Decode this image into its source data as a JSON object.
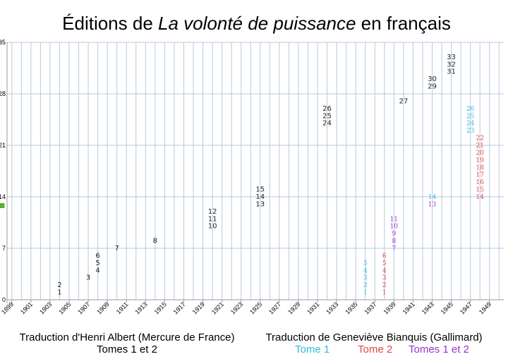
{
  "title": {
    "prefix": "Éditions de ",
    "italic": "La volonté de  puissance",
    "suffix": " en français"
  },
  "captions": {
    "albert_line1": "Traduction d'Henri Albert (Mercure de France)",
    "albert_line2": "Tomes 1 et 2",
    "bianquis_line1": "Traduction de Geneviève Bianquis (Gallimard)",
    "legend_tome1": "Tome 1",
    "legend_tome2": "Tome 2",
    "legend_tomes12": "Tomes 1 et 2"
  },
  "colors": {
    "albert": "#222222",
    "tome1": "#33bbdd",
    "tome2": "#e0474c",
    "tomes12": "#9933cc",
    "grid": "#b7c9dd",
    "axis": "#999999",
    "marker": "#55bb22"
  },
  "chart_data": {
    "type": "scatter",
    "title": "Éditions de La volonté de  puissance en français",
    "xlabel": "",
    "ylabel": "",
    "xlim": [
      1898.5,
      1950.5
    ],
    "ylim": [
      0,
      35
    ],
    "xticks": [
      "1899",
      "1901",
      "1903",
      "1905",
      "1907",
      "1909",
      "1911",
      "1913",
      "1915",
      "1917",
      "1919",
      "1921",
      "1923",
      "1925",
      "1927",
      "1929",
      "1931",
      "1933",
      "1935",
      "1937",
      "1939",
      "1941",
      "1943",
      "1945",
      "1947",
      "1949"
    ],
    "yticks": [
      "0",
      "7",
      "14",
      "21",
      "28",
      "35"
    ],
    "grid": true,
    "legend": "bottom",
    "series": [
      {
        "name": "Tomes 1 et 2",
        "group": "albert",
        "points": [
          {
            "x": 1904,
            "labels": [
              "1",
              "2"
            ]
          },
          {
            "x": 1907,
            "labels": [
              "3"
            ]
          },
          {
            "x": 1908,
            "labels": [
              "4",
              "5",
              "6"
            ]
          },
          {
            "x": 1910,
            "labels": [
              "7"
            ]
          },
          {
            "x": 1914,
            "labels": [
              "8"
            ]
          },
          {
            "x": 1920,
            "labels": [
              "10",
              "11",
              "12"
            ]
          },
          {
            "x": 1925,
            "labels": [
              "13",
              "14",
              "15"
            ]
          },
          {
            "x": 1932,
            "labels": [
              "24",
              "25",
              "26"
            ]
          },
          {
            "x": 1940,
            "labels": [
              "27"
            ]
          },
          {
            "x": 1943,
            "labels": [
              "29",
              "30"
            ]
          },
          {
            "x": 1945,
            "labels": [
              "31",
              "32",
              "33"
            ]
          }
        ]
      },
      {
        "name": "Tome 1",
        "group": "tome1",
        "points": [
          {
            "x": 1936,
            "labels": [
              "1",
              "2",
              "3",
              "4",
              "5"
            ]
          },
          {
            "x": 1943,
            "labels": [
              "14"
            ]
          },
          {
            "x": 1947,
            "labels": [
              "23",
              "24",
              "25",
              "26"
            ]
          }
        ]
      },
      {
        "name": "Tome 2",
        "group": "tome2",
        "points": [
          {
            "x": 1938,
            "labels": [
              "1",
              "2",
              "3",
              "4",
              "5",
              "6"
            ]
          },
          {
            "x": 1948,
            "labels": [
              "14",
              "15",
              "16",
              "17",
              "18",
              "19",
              "20",
              "21",
              "22"
            ]
          }
        ]
      },
      {
        "name": "Tomes 1 et 2",
        "group": "tomes12",
        "points": [
          {
            "x": 1939,
            "labels": [
              "7",
              "8",
              "9",
              "10",
              "11"
            ]
          },
          {
            "x": 1943,
            "labels": [
              "13"
            ]
          }
        ]
      }
    ],
    "y_axis_marker": 12.8
  }
}
